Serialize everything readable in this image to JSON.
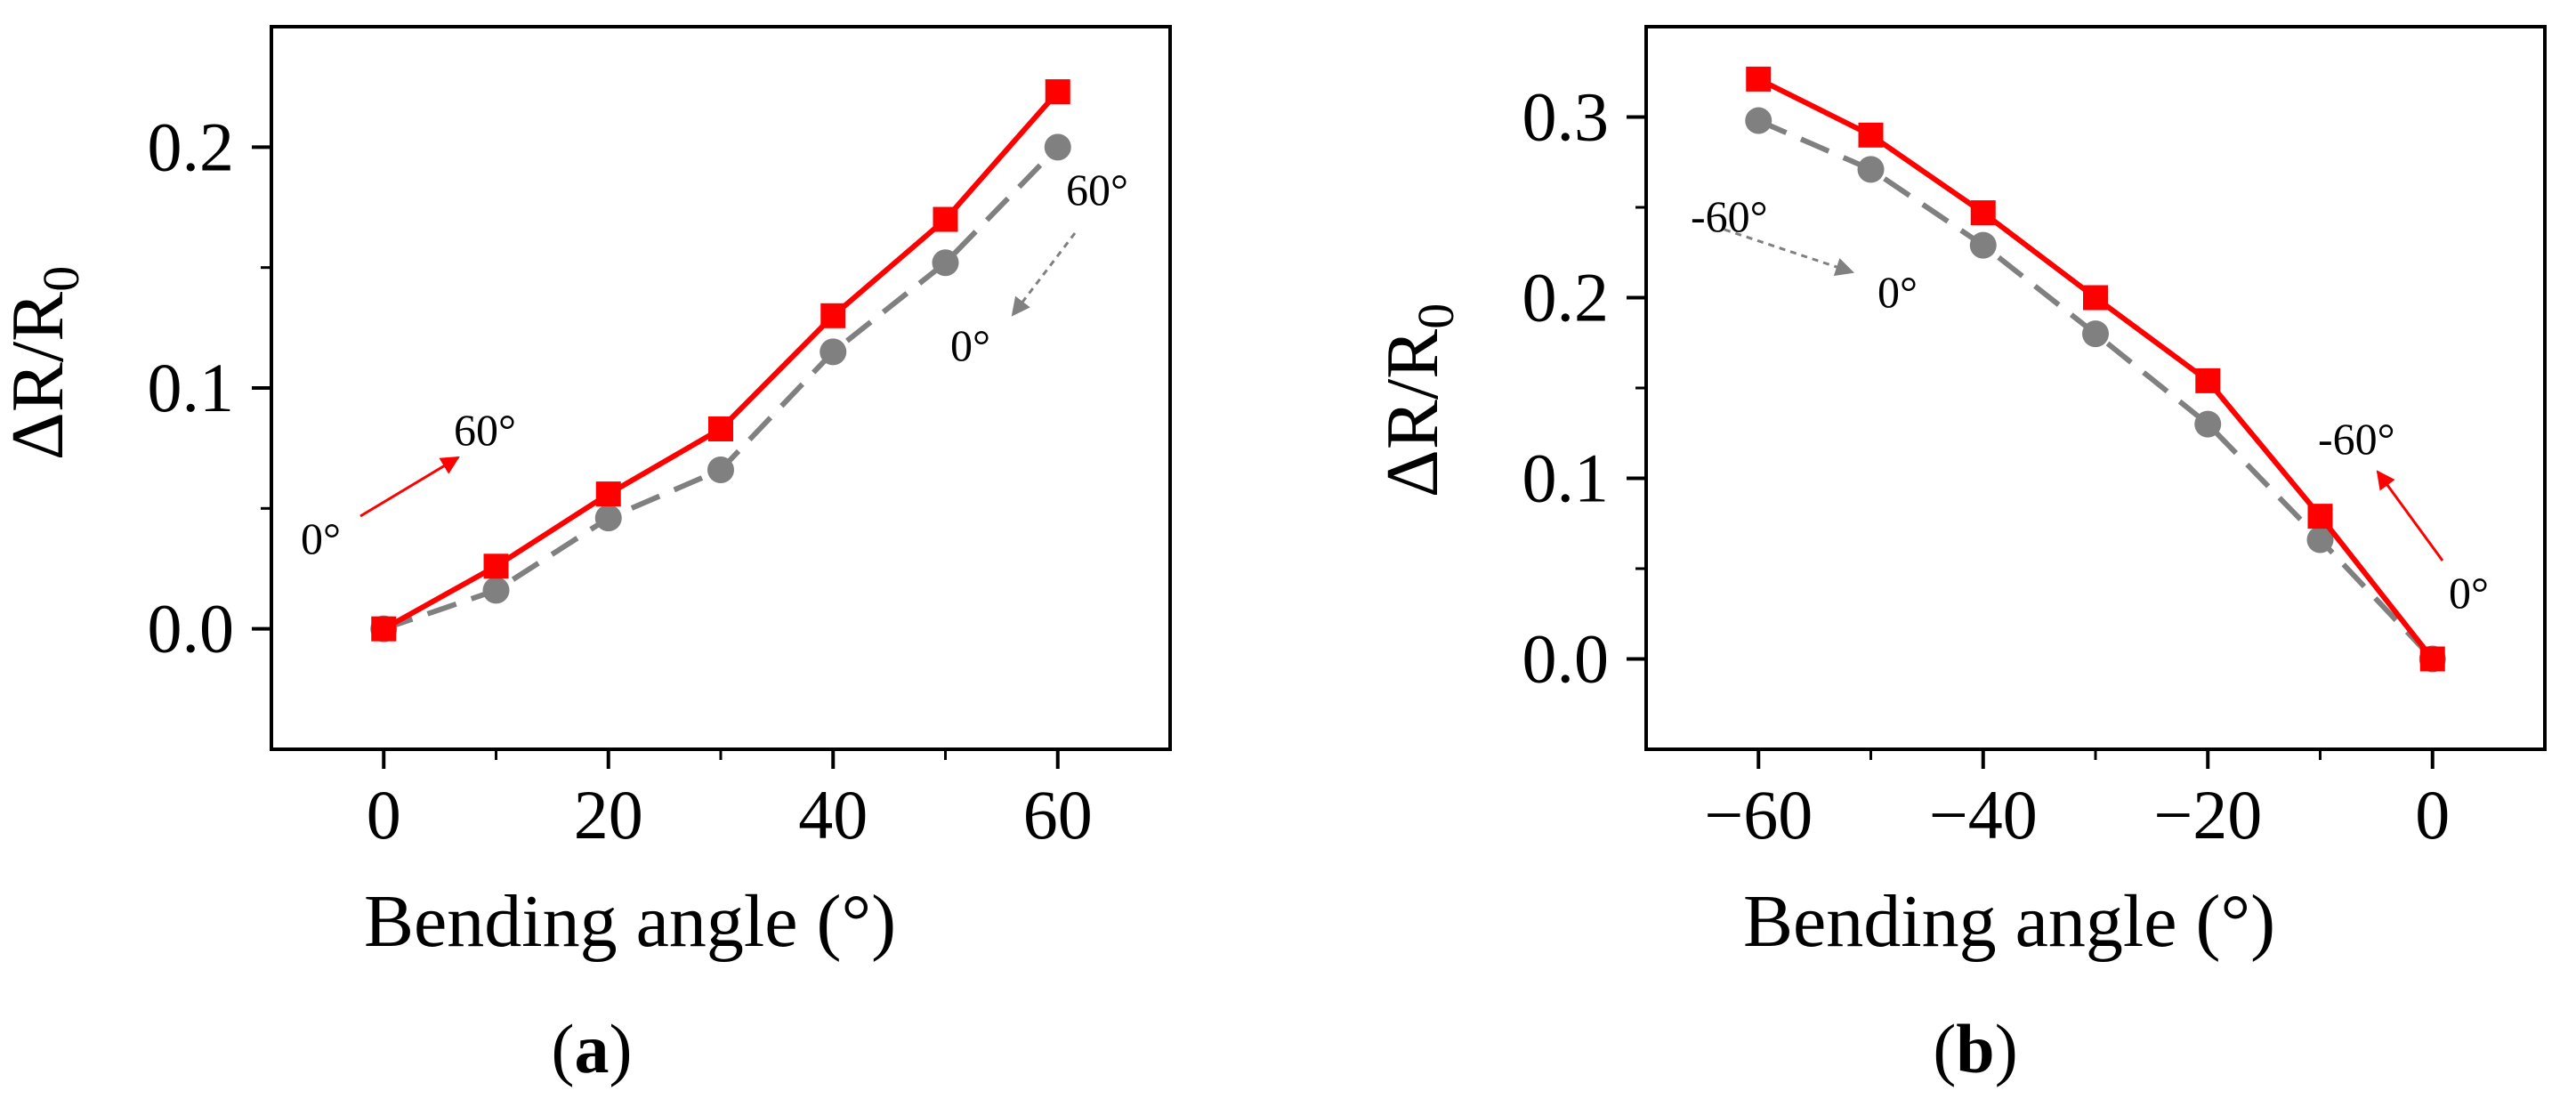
{
  "chart_data": [
    {
      "type": "line",
      "panel_label_open": "(",
      "panel_label_letter": "a",
      "panel_label_close": ")",
      "xlabel": "Bending angle (°)",
      "ylabel_main": "ΔR/R",
      "ylabel_sub": "0",
      "xlim": [
        -10,
        70
      ],
      "ylim": [
        -0.05,
        0.25
      ],
      "xticks": [
        0,
        20,
        40,
        60
      ],
      "xtick_labels": [
        "0",
        "20",
        "40",
        "60"
      ],
      "yticks": [
        0.0,
        0.1,
        0.2
      ],
      "ytick_labels": [
        "0.0",
        "0.1",
        "0.2"
      ],
      "grid": false,
      "x": [
        0,
        10,
        20,
        30,
        40,
        50,
        60
      ],
      "series": [
        {
          "color": "#ff0000",
          "line": "solid",
          "marker": "square",
          "values": [
            0.0,
            0.026,
            0.056,
            0.083,
            0.13,
            0.17,
            0.223
          ]
        },
        {
          "color": "#808080",
          "line": "dashed",
          "marker": "circle",
          "values": [
            0.0,
            0.016,
            0.046,
            0.066,
            0.115,
            0.152,
            0.2
          ]
        }
      ],
      "annotations": [
        {
          "text": "0°",
          "color": "#000000"
        },
        {
          "text": "60°",
          "color": "#000000"
        },
        {
          "text": "60°",
          "color": "#000000"
        },
        {
          "text": "0°",
          "color": "#000000"
        }
      ]
    },
    {
      "type": "line",
      "panel_label_open": "(",
      "panel_label_letter": "b",
      "panel_label_close": ")",
      "xlabel": "Bending angle (°)",
      "ylabel_main": "ΔR/R",
      "ylabel_sub": "0",
      "xlim": [
        -70,
        10
      ],
      "ylim": [
        -0.05,
        0.35
      ],
      "xticks": [
        -60,
        -40,
        -20,
        0
      ],
      "xtick_labels": [
        "−60",
        "−40",
        "−20",
        "0"
      ],
      "yticks": [
        0.0,
        0.1,
        0.2,
        0.3
      ],
      "ytick_labels": [
        "0.0",
        "0.1",
        "0.2",
        "0.3"
      ],
      "grid": false,
      "x": [
        -60,
        -50,
        -40,
        -30,
        -20,
        -10,
        0
      ],
      "series": [
        {
          "color": "#ff0000",
          "line": "solid",
          "marker": "square",
          "values": [
            0.321,
            0.29,
            0.247,
            0.2,
            0.154,
            0.079,
            0.0
          ]
        },
        {
          "color": "#808080",
          "line": "dashed",
          "marker": "circle",
          "values": [
            0.298,
            0.271,
            0.229,
            0.18,
            0.13,
            0.066,
            0.0
          ]
        }
      ],
      "annotations": [
        {
          "text": "-60°",
          "color": "#000000"
        },
        {
          "text": "0°",
          "color": "#000000"
        },
        {
          "text": "-60°",
          "color": "#000000"
        },
        {
          "text": "0°",
          "color": "#000000"
        }
      ]
    }
  ]
}
